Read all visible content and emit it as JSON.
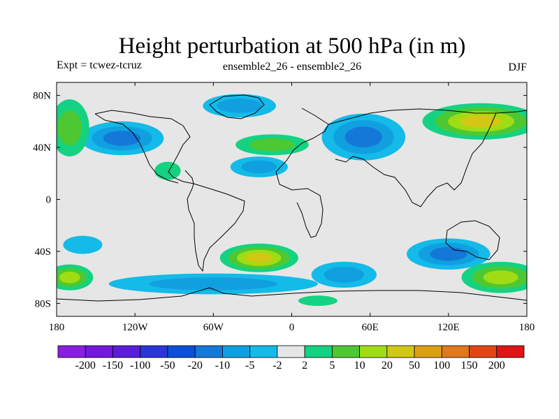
{
  "chart_data": {
    "type": "heatmap",
    "title": "Height perturbation at 500 hPa (in m)",
    "left_label": "Expt = tcwez-tcruz",
    "center_label": "ensemble2_26 - ensemble2_26",
    "right_label": "DJF",
    "projection": "cylindrical equidistant",
    "xlim": [
      -180,
      180
    ],
    "ylim": [
      -90,
      90
    ],
    "xticks": [
      {
        "value": -180,
        "label": "180"
      },
      {
        "value": -120,
        "label": "120W"
      },
      {
        "value": -60,
        "label": "60W"
      },
      {
        "value": 0,
        "label": "0"
      },
      {
        "value": 60,
        "label": "60E"
      },
      {
        "value": 120,
        "label": "120E"
      },
      {
        "value": 180,
        "label": "180"
      }
    ],
    "yticks": [
      {
        "value": 80,
        "label": "80N"
      },
      {
        "value": 40,
        "label": "40N"
      },
      {
        "value": 0,
        "label": "0"
      },
      {
        "value": -40,
        "label": "40S"
      },
      {
        "value": -80,
        "label": "80S"
      }
    ],
    "colorbar": {
      "labels": [
        "-200",
        "-150",
        "-100",
        "-50",
        "-20",
        "-10",
        "-5",
        "-2",
        "2",
        "5",
        "10",
        "20",
        "50",
        "100",
        "150",
        "200"
      ],
      "colors": [
        "#8a1ee0",
        "#7418dc",
        "#5a1ed8",
        "#2a36d8",
        "#0a50d8",
        "#1478d8",
        "#10a0e0",
        "#14bae8",
        "#e6e6e6",
        "#14d282",
        "#4ec832",
        "#a0dc14",
        "#d2c814",
        "#dca014",
        "#e0781e",
        "#e04614",
        "#e01414"
      ]
    },
    "features": [
      {
        "name": "north-pacific-low",
        "lon": -130,
        "lat": 47,
        "rx": 32,
        "ry": 13,
        "value": -15
      },
      {
        "name": "greenland-low",
        "lon": -40,
        "lat": 72,
        "rx": 28,
        "ry": 9,
        "value": -8
      },
      {
        "name": "atlantic-trough",
        "lon": -25,
        "lat": 25,
        "rx": 22,
        "ry": 8,
        "value": -6
      },
      {
        "name": "north-atlantic-high",
        "lon": -15,
        "lat": 42,
        "rx": 28,
        "ry": 8,
        "value": 7
      },
      {
        "name": "west-siberia-low",
        "lon": 55,
        "lat": 48,
        "rx": 32,
        "ry": 18,
        "value": -15
      },
      {
        "name": "east-siberia-high",
        "lon": 145,
        "lat": 60,
        "rx": 45,
        "ry": 14,
        "value": 20
      },
      {
        "name": "north-pacific-high",
        "lon": -170,
        "lat": 55,
        "rx": 15,
        "ry": 22,
        "value": 8
      },
      {
        "name": "mexico-high",
        "lon": -95,
        "lat": 22,
        "rx": 10,
        "ry": 7,
        "value": 4
      },
      {
        "name": "south-atlantic-high",
        "lon": -25,
        "lat": -45,
        "rx": 30,
        "ry": 11,
        "value": 35
      },
      {
        "name": "southern-ocean-low",
        "lon": -60,
        "lat": -65,
        "rx": 80,
        "ry": 8,
        "value": -6
      },
      {
        "name": "indian-ocean-low",
        "lon": 40,
        "lat": -58,
        "rx": 25,
        "ry": 10,
        "value": -7
      },
      {
        "name": "australia-low",
        "lon": 120,
        "lat": -42,
        "rx": 32,
        "ry": 12,
        "value": -12
      },
      {
        "name": "tasman-high",
        "lon": 160,
        "lat": -60,
        "rx": 30,
        "ry": 12,
        "value": 15
      },
      {
        "name": "southeast-pacific-low",
        "lon": -160,
        "lat": -35,
        "rx": 15,
        "ry": 7,
        "value": -4
      },
      {
        "name": "far-south-high",
        "lon": 20,
        "lat": -78,
        "rx": 15,
        "ry": 4,
        "value": 4
      },
      {
        "name": "southwest-pacific-high",
        "lon": -170,
        "lat": -60,
        "rx": 18,
        "ry": 10,
        "value": 12
      }
    ]
  }
}
